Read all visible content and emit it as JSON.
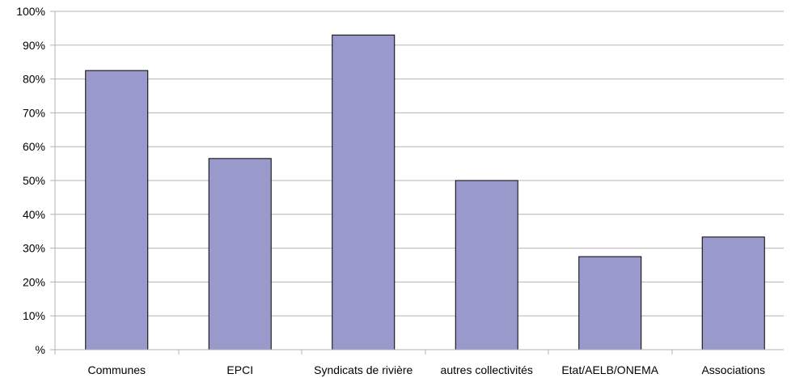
{
  "chart_data": {
    "type": "bar",
    "categories": [
      "Communes",
      "EPCI",
      "Syndicats de rivière",
      "autres collectivités",
      "Etat/AELB/ONEMA",
      "Associations"
    ],
    "values": [
      82.5,
      56.5,
      93,
      50,
      27.5,
      33.3
    ],
    "y_ticks": [
      "%",
      "10%",
      "20%",
      "30%",
      "40%",
      "50%",
      "60%",
      "70%",
      "80%",
      "90%",
      "100%"
    ],
    "ylim": [
      0,
      100
    ],
    "grid": true,
    "legend": "none",
    "colors": {
      "bar": "#9999cc",
      "bar_stroke": "#000000",
      "grid": "#b3b3b3",
      "axis": "#b3b3b3"
    }
  }
}
